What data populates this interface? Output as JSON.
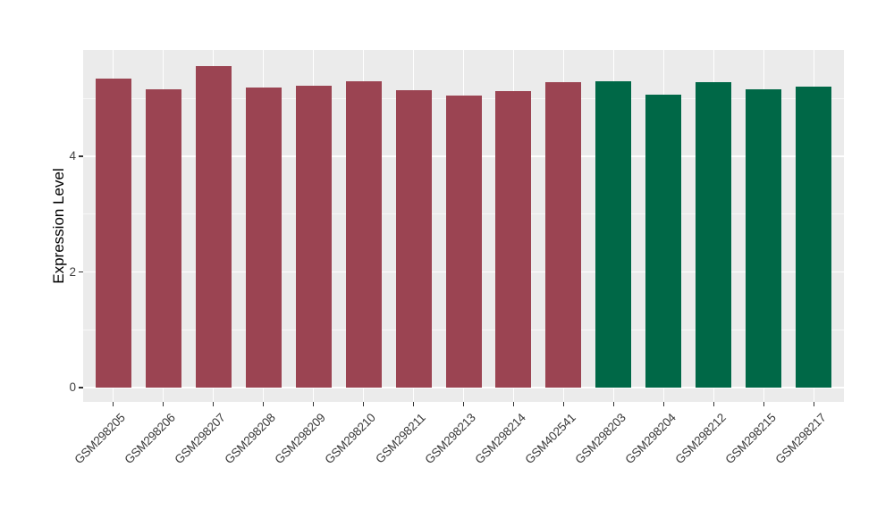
{
  "chart_data": {
    "type": "bar",
    "title": "",
    "xlabel": "",
    "ylabel": "Expression Level",
    "ylim": [
      0,
      5.84
    ],
    "yticks_major": [
      0,
      2,
      4
    ],
    "yticks_minor": [
      1,
      3,
      5
    ],
    "grid": true,
    "legend_position": "none",
    "categories": [
      "GSM298205",
      "GSM298206",
      "GSM298207",
      "GSM298208",
      "GSM298209",
      "GSM298210",
      "GSM298211",
      "GSM298213",
      "GSM298214",
      "GSM402541",
      "GSM298203",
      "GSM298204",
      "GSM298212",
      "GSM298215",
      "GSM298217"
    ],
    "values": [
      5.35,
      5.16,
      5.56,
      5.19,
      5.22,
      5.3,
      5.15,
      5.05,
      5.13,
      5.28,
      5.3,
      5.07,
      5.28,
      5.16,
      5.21
    ],
    "bar_colors": [
      "#9B4452",
      "#9B4452",
      "#9B4452",
      "#9B4452",
      "#9B4452",
      "#9B4452",
      "#9B4452",
      "#9B4452",
      "#9B4452",
      "#9B4452",
      "#006847",
      "#006847",
      "#006847",
      "#006847",
      "#006847"
    ],
    "colors": {
      "group_red": "#9B4452",
      "group_green": "#006847",
      "panel_background": "#EBEBEB",
      "gridline": "#FFFFFF",
      "axis_text": "#404040",
      "tick_mark": "#333333"
    }
  }
}
